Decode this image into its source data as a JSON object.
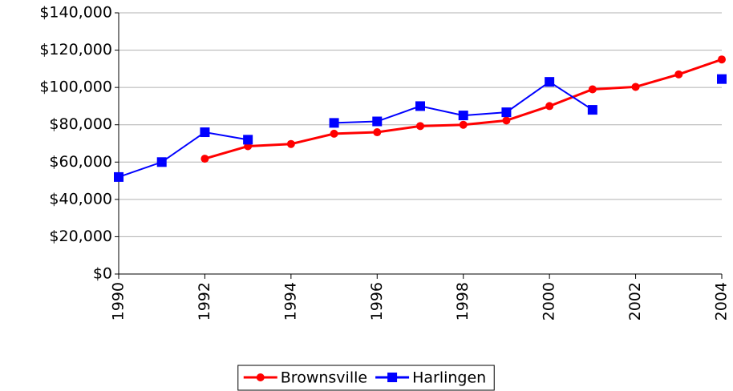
{
  "chart_data": {
    "type": "line",
    "x": [
      1990,
      1991,
      1992,
      1993,
      1994,
      1995,
      1996,
      1997,
      1998,
      1999,
      2000,
      2001,
      2002,
      2003,
      2004
    ],
    "series": [
      {
        "name": "Brownsville",
        "color": "#ff0000",
        "marker": "circle",
        "values": [
          null,
          null,
          61800,
          68500,
          69700,
          75200,
          76000,
          79300,
          80000,
          82300,
          90000,
          99000,
          100300,
          107000,
          115000
        ]
      },
      {
        "name": "Harlingen",
        "color": "#0000ff",
        "marker": "square",
        "values": [
          52000,
          60000,
          76000,
          72000,
          null,
          81000,
          81800,
          90000,
          85000,
          86700,
          103000,
          88000,
          null,
          null,
          104500
        ]
      }
    ],
    "xlim": [
      1990,
      2004
    ],
    "xticks": [
      1990,
      1992,
      1994,
      1996,
      1998,
      2000,
      2002,
      2004
    ],
    "ylim": [
      0,
      140000
    ],
    "yticks": [
      {
        "value": 0,
        "label": "$0"
      },
      {
        "value": 20000,
        "label": "$20,000"
      },
      {
        "value": 40000,
        "label": "$40,000"
      },
      {
        "value": 60000,
        "label": "$60,000"
      },
      {
        "value": 80000,
        "label": "$80,000"
      },
      {
        "value": 100000,
        "label": "$100,000"
      },
      {
        "value": 120000,
        "label": "$120,000"
      },
      {
        "value": 140000,
        "label": "$140,000"
      }
    ],
    "grid": true,
    "legend": "bottom"
  }
}
